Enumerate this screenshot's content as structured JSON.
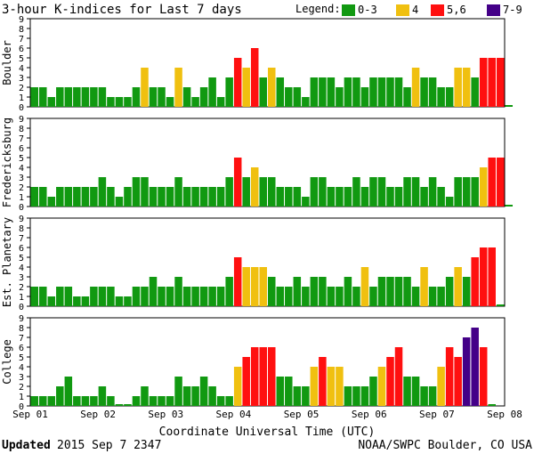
{
  "chart_data": [
    {
      "type": "bar",
      "panel": "Boulder",
      "ylabel": "Boulder",
      "ylim": [
        0,
        9
      ],
      "values": [
        2,
        2,
        1,
        2,
        2,
        2,
        2,
        2,
        2,
        1,
        1,
        1,
        2,
        4,
        2,
        2,
        1,
        4,
        2,
        1,
        2,
        3,
        1,
        3,
        5,
        4,
        6,
        3,
        4,
        3,
        2,
        2,
        1,
        3,
        3,
        3,
        2,
        3,
        3,
        2,
        3,
        3,
        3,
        3,
        2,
        4,
        3,
        3,
        2,
        2,
        4,
        4,
        3,
        5,
        5,
        5,
        0
      ]
    },
    {
      "type": "bar",
      "panel": "Fredericksburg",
      "ylabel": "Fredericksburg",
      "ylim": [
        0,
        9
      ],
      "values": [
        2,
        2,
        1,
        2,
        2,
        2,
        2,
        2,
        3,
        2,
        1,
        2,
        3,
        3,
        2,
        2,
        2,
        3,
        2,
        2,
        2,
        2,
        2,
        3,
        5,
        3,
        4,
        3,
        3,
        2,
        2,
        2,
        1,
        3,
        3,
        2,
        2,
        2,
        3,
        2,
        3,
        3,
        2,
        2,
        3,
        3,
        2,
        3,
        2,
        1,
        3,
        3,
        3,
        4,
        5,
        5,
        0
      ]
    },
    {
      "type": "bar",
      "panel": "Est. Planetary",
      "ylabel": "Est. Planetary",
      "ylim": [
        0,
        9
      ],
      "values": [
        2,
        2,
        1,
        2,
        2,
        1,
        1,
        2,
        2,
        2,
        1,
        1,
        2,
        2,
        3,
        2,
        2,
        3,
        2,
        2,
        2,
        2,
        2,
        3,
        5,
        4,
        4,
        4,
        3,
        2,
        2,
        3,
        2,
        3,
        3,
        2,
        2,
        3,
        2,
        4,
        2,
        3,
        3,
        3,
        3,
        2,
        4,
        2,
        2,
        3,
        4,
        3,
        5,
        6,
        6,
        0
      ]
    },
    {
      "type": "bar",
      "panel": "College",
      "ylabel": "College",
      "ylim": [
        0,
        9
      ],
      "values": [
        1,
        1,
        1,
        2,
        3,
        1,
        1,
        1,
        2,
        1,
        0,
        0,
        1,
        2,
        1,
        1,
        1,
        3,
        2,
        2,
        3,
        2,
        1,
        1,
        4,
        5,
        6,
        6,
        6,
        3,
        3,
        2,
        2,
        4,
        5,
        4,
        4,
        2,
        2,
        2,
        3,
        4,
        5,
        6,
        3,
        3,
        2,
        2,
        4,
        6,
        5,
        7,
        8,
        6,
        0
      ]
    }
  ],
  "x_axis": {
    "label": "Coordinate Universal Time (UTC)",
    "ticks": [
      "Sep 01",
      "Sep 02",
      "Sep 03",
      "Sep 04",
      "Sep 05",
      "Sep 06",
      "Sep 07",
      "Sep 08"
    ]
  },
  "y_ticks": [
    "0",
    "1",
    "2",
    "3",
    "4",
    "5",
    "6",
    "7",
    "8",
    "9"
  ],
  "header": {
    "title": "3-hour K-indices for Last 7 days",
    "legend_label": "Legend:",
    "legend": [
      {
        "label": "0-3",
        "color": "#119911"
      },
      {
        "label": "4",
        "color": "#f0c010"
      },
      {
        "label": "5,6",
        "color": "#ff1010"
      },
      {
        "label": "7-9",
        "color": "#440088"
      }
    ]
  },
  "footer": {
    "updated_label": "Updated",
    "updated_value": "2015 Sep  7 2347",
    "credit": "NOAA/SWPC Boulder, CO USA"
  }
}
